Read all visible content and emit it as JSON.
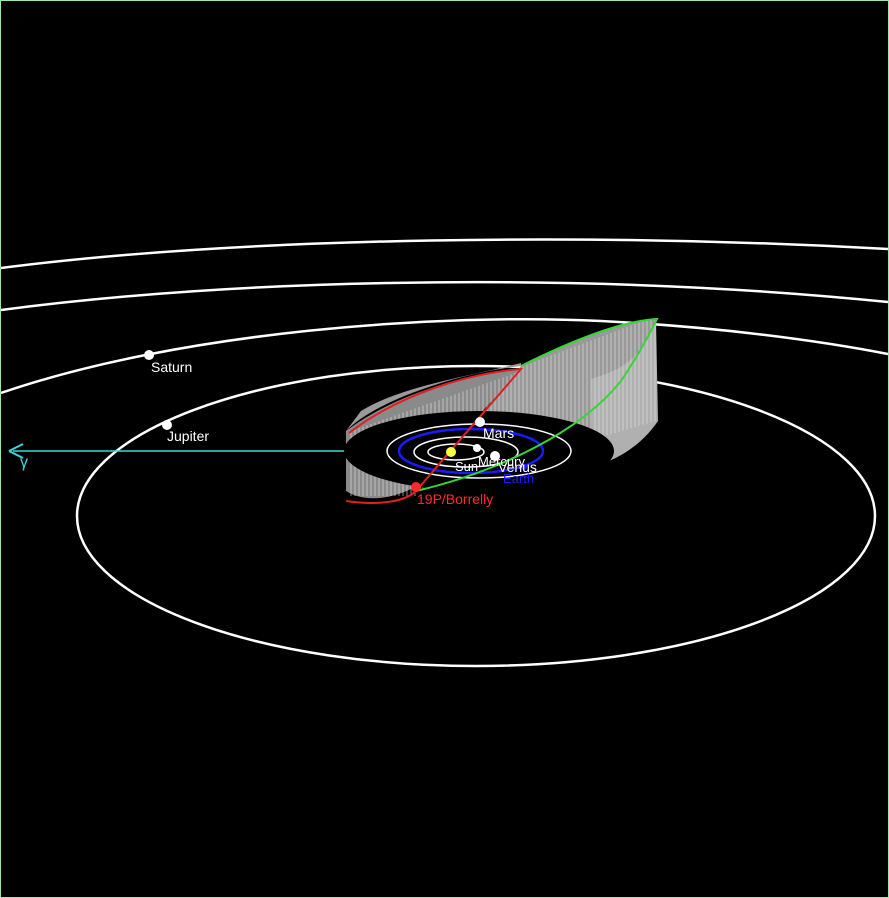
{
  "view": {
    "background": "#000000",
    "frame_color": "#9fe7a6"
  },
  "orbits": [
    {
      "name": "outer-1",
      "color": "#ffffff"
    },
    {
      "name": "outer-2",
      "color": "#ffffff"
    },
    {
      "name": "saturn",
      "color": "#ffffff"
    },
    {
      "name": "jupiter",
      "color": "#ffffff"
    },
    {
      "name": "mars",
      "color": "#ffffff"
    },
    {
      "name": "earth",
      "color": "#1a1aff"
    },
    {
      "name": "venus",
      "color": "#ffffff"
    },
    {
      "name": "mercury",
      "color": "#ffffff"
    }
  ],
  "labels": {
    "saturn": "Saturn",
    "jupiter": "Jupiter",
    "mars": "Mars",
    "venus": "Venus",
    "mercury": "Mercury",
    "earth": "Earth",
    "sun": "Sun",
    "comet": "19P/Borrelly",
    "vernal_equinox": "γ"
  },
  "colors": {
    "planet_label": "#ffffff",
    "comet": "#ff2a2a",
    "comet_ascending": "#38d438",
    "comet_descending": "#e02020",
    "comet_surface": "#9a9a9a",
    "earth": "#1a1aff",
    "sun": "#ffff40",
    "axis": "#3fd6d6"
  }
}
